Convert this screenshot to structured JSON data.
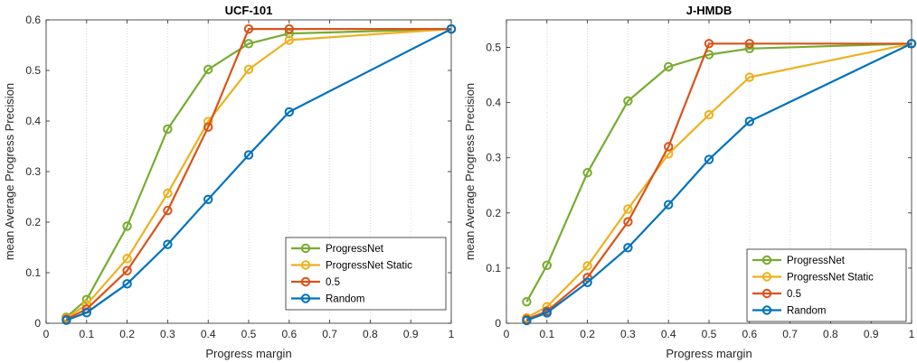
{
  "chart_data": [
    {
      "type": "line",
      "title": "UCF-101",
      "xlabel": "Progress margin",
      "ylabel": "mean Average Progress Precision",
      "xlim": [
        0,
        1
      ],
      "ylim": [
        0,
        0.6
      ],
      "xticks": [
        "0",
        "0.1",
        "0.2",
        "0.3",
        "0.4",
        "0.5",
        "0.6",
        "0.7",
        "0.8",
        "0.9",
        "1"
      ],
      "yticks": [
        "0",
        "0.1",
        "0.2",
        "0.3",
        "0.4",
        "0.5",
        "0.6"
      ],
      "xtick_values": [
        0,
        0.1,
        0.2,
        0.3,
        0.4,
        0.5,
        0.6,
        0.7,
        0.8,
        0.9,
        1
      ],
      "ytick_values": [
        0,
        0.1,
        0.2,
        0.3,
        0.4,
        0.5,
        0.6
      ],
      "grid": "vertical dotted",
      "legend_position": "bottom-right",
      "x": [
        0.05,
        0.1,
        0.2,
        0.3,
        0.4,
        0.5,
        0.6,
        1.0
      ],
      "series": [
        {
          "name": "ProgressNet",
          "color": "#77ac30",
          "values": [
            0.012,
            0.047,
            0.192,
            0.384,
            0.502,
            0.553,
            0.573,
            0.582
          ]
        },
        {
          "name": "ProgressNet Static",
          "color": "#edb120",
          "values": [
            0.01,
            0.037,
            0.128,
            0.257,
            0.399,
            0.502,
            0.56,
            0.582
          ]
        },
        {
          "name": "0.5",
          "color": "#d95319",
          "values": [
            0.008,
            0.028,
            0.104,
            0.223,
            0.388,
            0.582,
            0.582,
            0.582
          ]
        },
        {
          "name": "Random",
          "color": "#0072bd",
          "values": [
            0.006,
            0.021,
            0.078,
            0.156,
            0.245,
            0.333,
            0.418,
            0.582
          ]
        }
      ]
    },
    {
      "type": "line",
      "title": "J-HMDB",
      "xlabel": "Progress margin",
      "ylabel": "mean Average Progress Precision",
      "xlim": [
        0,
        1
      ],
      "ylim": [
        0,
        0.55
      ],
      "xticks": [
        "0",
        "0.1",
        "0.2",
        "0.3",
        "0.4",
        "0.5",
        "0.6",
        "0.7",
        "0.8",
        "0.9",
        "1"
      ],
      "yticks": [
        "0",
        "0.1",
        "0.2",
        "0.3",
        "0.4",
        "0.5"
      ],
      "xtick_values": [
        0,
        0.1,
        0.2,
        0.3,
        0.4,
        0.5,
        0.6,
        0.7,
        0.8,
        0.9,
        1
      ],
      "ytick_values": [
        0,
        0.1,
        0.2,
        0.3,
        0.4,
        0.5
      ],
      "grid": "vertical dotted",
      "legend_position": "bottom-right",
      "x": [
        0.05,
        0.1,
        0.2,
        0.3,
        0.4,
        0.5,
        0.6,
        1.0
      ],
      "series": [
        {
          "name": "ProgressNet",
          "color": "#77ac30",
          "values": [
            0.039,
            0.105,
            0.273,
            0.403,
            0.465,
            0.487,
            0.498,
            0.507
          ]
        },
        {
          "name": "ProgressNet Static",
          "color": "#edb120",
          "values": [
            0.01,
            0.03,
            0.104,
            0.207,
            0.307,
            0.378,
            0.446,
            0.507
          ]
        },
        {
          "name": "0.5",
          "color": "#d95319",
          "values": [
            0.007,
            0.022,
            0.083,
            0.184,
            0.32,
            0.507,
            0.507,
            0.507
          ]
        },
        {
          "name": "Random",
          "color": "#0072bd",
          "values": [
            0.005,
            0.019,
            0.074,
            0.137,
            0.215,
            0.297,
            0.366,
            0.507
          ]
        }
      ]
    }
  ]
}
